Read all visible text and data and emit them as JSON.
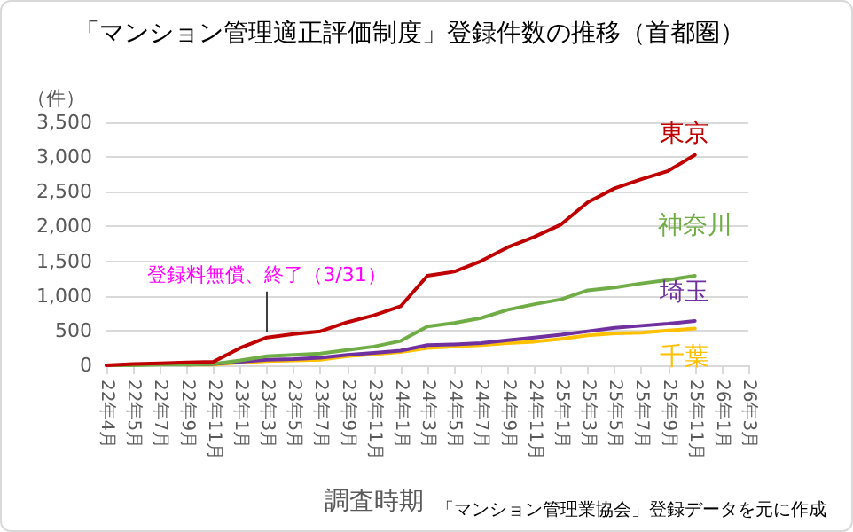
{
  "chart_data": {
    "type": "line",
    "title": "「マンション管理適正評価制度」登録件数の推移（首都圏）",
    "xlabel": "調査時期",
    "ylabel": "（件）",
    "categories": [
      "22年4月",
      "22年5月",
      "22年7月",
      "22年9月",
      "22年11月",
      "23年1月",
      "23年3月",
      "23年5月",
      "23年7月",
      "23年9月",
      "23年11月",
      "24年1月",
      "24年3月",
      "24年5月",
      "24年7月",
      "24年9月",
      "24年11月",
      "25年1月",
      "25年3月",
      "25年5月",
      "25年7月",
      "25年9月",
      "25年11月",
      "26年1月",
      "26年3月"
    ],
    "series": [
      {
        "name": "東京",
        "color": "#c00000",
        "values": [
          0,
          20,
          30,
          40,
          50,
          250,
          400,
          450,
          490,
          620,
          720,
          850,
          1290,
          1350,
          1500,
          1700,
          1850,
          2030,
          2350,
          2550,
          2680,
          2800,
          3030,
          null,
          null
        ]
      },
      {
        "name": "神奈川",
        "color": "#70ad47",
        "values": [
          0,
          0,
          10,
          10,
          20,
          70,
          130,
          150,
          170,
          220,
          270,
          350,
          560,
          610,
          680,
          800,
          880,
          950,
          1080,
          1120,
          1180,
          1230,
          1290,
          null,
          null
        ]
      },
      {
        "name": "埼玉",
        "color": "#7030a0",
        "values": [
          null,
          null,
          null,
          10,
          20,
          50,
          80,
          90,
          110,
          150,
          180,
          210,
          290,
          300,
          320,
          360,
          400,
          440,
          490,
          540,
          570,
          600,
          640,
          null,
          null
        ]
      },
      {
        "name": "千葉",
        "color": "#ffc000",
        "values": [
          null,
          null,
          null,
          10,
          10,
          40,
          60,
          70,
          80,
          130,
          160,
          190,
          250,
          270,
          290,
          320,
          340,
          380,
          430,
          460,
          470,
          500,
          530,
          null,
          null
        ]
      }
    ],
    "ylim": [
      0,
      3500
    ],
    "yticks": [
      0,
      500,
      {
        "value": 1000,
        "label": "1,000"
      },
      {
        "value": 1500,
        "label": "1,500"
      },
      {
        "value": 2000,
        "label": "2,000"
      },
      {
        "value": 2500,
        "label": "2,500"
      },
      {
        "value": 3000,
        "label": "3,000"
      },
      {
        "value": 3500,
        "label": "3,500"
      }
    ],
    "grid": "y",
    "legend": false,
    "marker": "none",
    "line_style": "solid",
    "annotations": [
      {
        "text": "登録料無償、終了（3/31）",
        "x": "23年3月",
        "y": 400
      },
      "「マンション管理業協会」登録データを元に作成"
    ]
  }
}
